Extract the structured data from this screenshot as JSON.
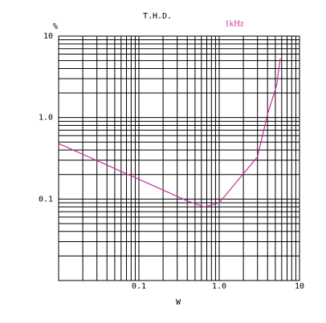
{
  "chart_data": {
    "type": "line",
    "title": "T.H.D.",
    "annotation": "1kHz",
    "annotation_color": "#cc2a9a",
    "y_label": "%",
    "x_label": "W",
    "xlog": true,
    "ylog": true,
    "grid": true,
    "minor_grid": true,
    "xlim": [
      0.01,
      10
    ],
    "ylim": [
      0.01,
      10
    ],
    "xticks": [
      0.1,
      {
        "value": 1,
        "label": "1.0"
      },
      10
    ],
    "yticks": [
      10,
      {
        "value": 1,
        "label": "1.0"
      },
      0.1
    ],
    "x": [
      0.01,
      0.4,
      0.65,
      1.0,
      3.0,
      4.0,
      5.2,
      5.75
    ],
    "series": [
      {
        "color": "#cc2a9a",
        "values": [
          0.48,
          0.095,
          0.08,
          0.09,
          0.33,
          1.1,
          2.5,
          5.3
        ]
      }
    ]
  }
}
